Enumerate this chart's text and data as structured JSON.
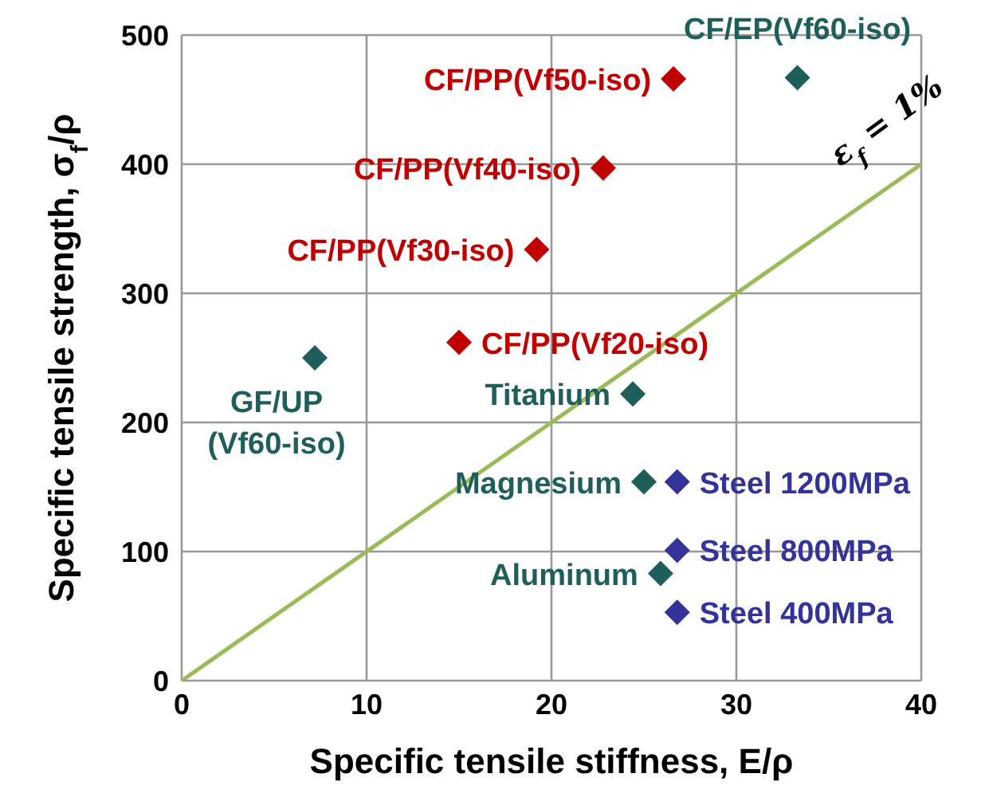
{
  "chart_data": {
    "type": "scatter",
    "xlabel": "Specific tensile stiffness, E/ρ",
    "ylabel": "Specific tensile strength, σ$_{f}$/ρ",
    "xlim": [
      0,
      40
    ],
    "xticks": [
      0,
      10,
      20,
      30,
      40
    ],
    "ylim": [
      0,
      500
    ],
    "yticks": [
      0,
      100,
      200,
      300,
      400,
      500
    ],
    "grid": true,
    "legend": false,
    "marker": "diamond",
    "series": [
      {
        "color": "#c00000",
        "x": [
          26.6,
          22.8,
          19.2,
          15.0
        ],
        "values": [
          466,
          397,
          334,
          262
        ]
      },
      {
        "color": "#1f5f5b",
        "x": [
          33.3,
          7.2,
          24.4,
          25.0,
          25.9
        ],
        "values": [
          467,
          250,
          222,
          154,
          83
        ]
      },
      {
        "color": "#333399",
        "x": [
          26.8,
          26.8,
          26.8
        ],
        "values": [
          154,
          101,
          53
        ]
      },
      {
        "type": "line",
        "marker": "none",
        "color": "#9bbb59",
        "x": [
          0,
          40
        ],
        "values": [
          0,
          400
        ]
      }
    ],
    "annotations": [
      {
        "text": "CF/EP(Vf60-iso)",
        "x": 33.3,
        "y": 467
      },
      {
        "text": "CF/PP(Vf50-iso)",
        "x": 26.6,
        "y": 466
      },
      {
        "text": "CF/PP(Vf40-iso)",
        "x": 22.8,
        "y": 397
      },
      {
        "text": "CF/PP(Vf30-iso)",
        "x": 19.2,
        "y": 334
      },
      {
        "text": "CF/PP(Vf20-iso)",
        "x": 15.0,
        "y": 262
      },
      {
        "text": "GF/UP (Vf60-iso)",
        "x": 7.2,
        "y": 250
      },
      {
        "text": "Titanium",
        "x": 24.4,
        "y": 222
      },
      {
        "text": "Magnesium",
        "x": 25.0,
        "y": 154
      },
      {
        "text": "Steel 1200MPa",
        "x": 26.8,
        "y": 154
      },
      {
        "text": "Steel 800MPa",
        "x": 26.8,
        "y": 101
      },
      {
        "text": "Aluminum",
        "x": 25.9,
        "y": 83
      },
      {
        "text": "Steel 400MPa",
        "x": 26.8,
        "y": 53
      },
      {
        "text": "ε$_{f}$ = 1%",
        "x": 40,
        "y": 400
      }
    ]
  }
}
